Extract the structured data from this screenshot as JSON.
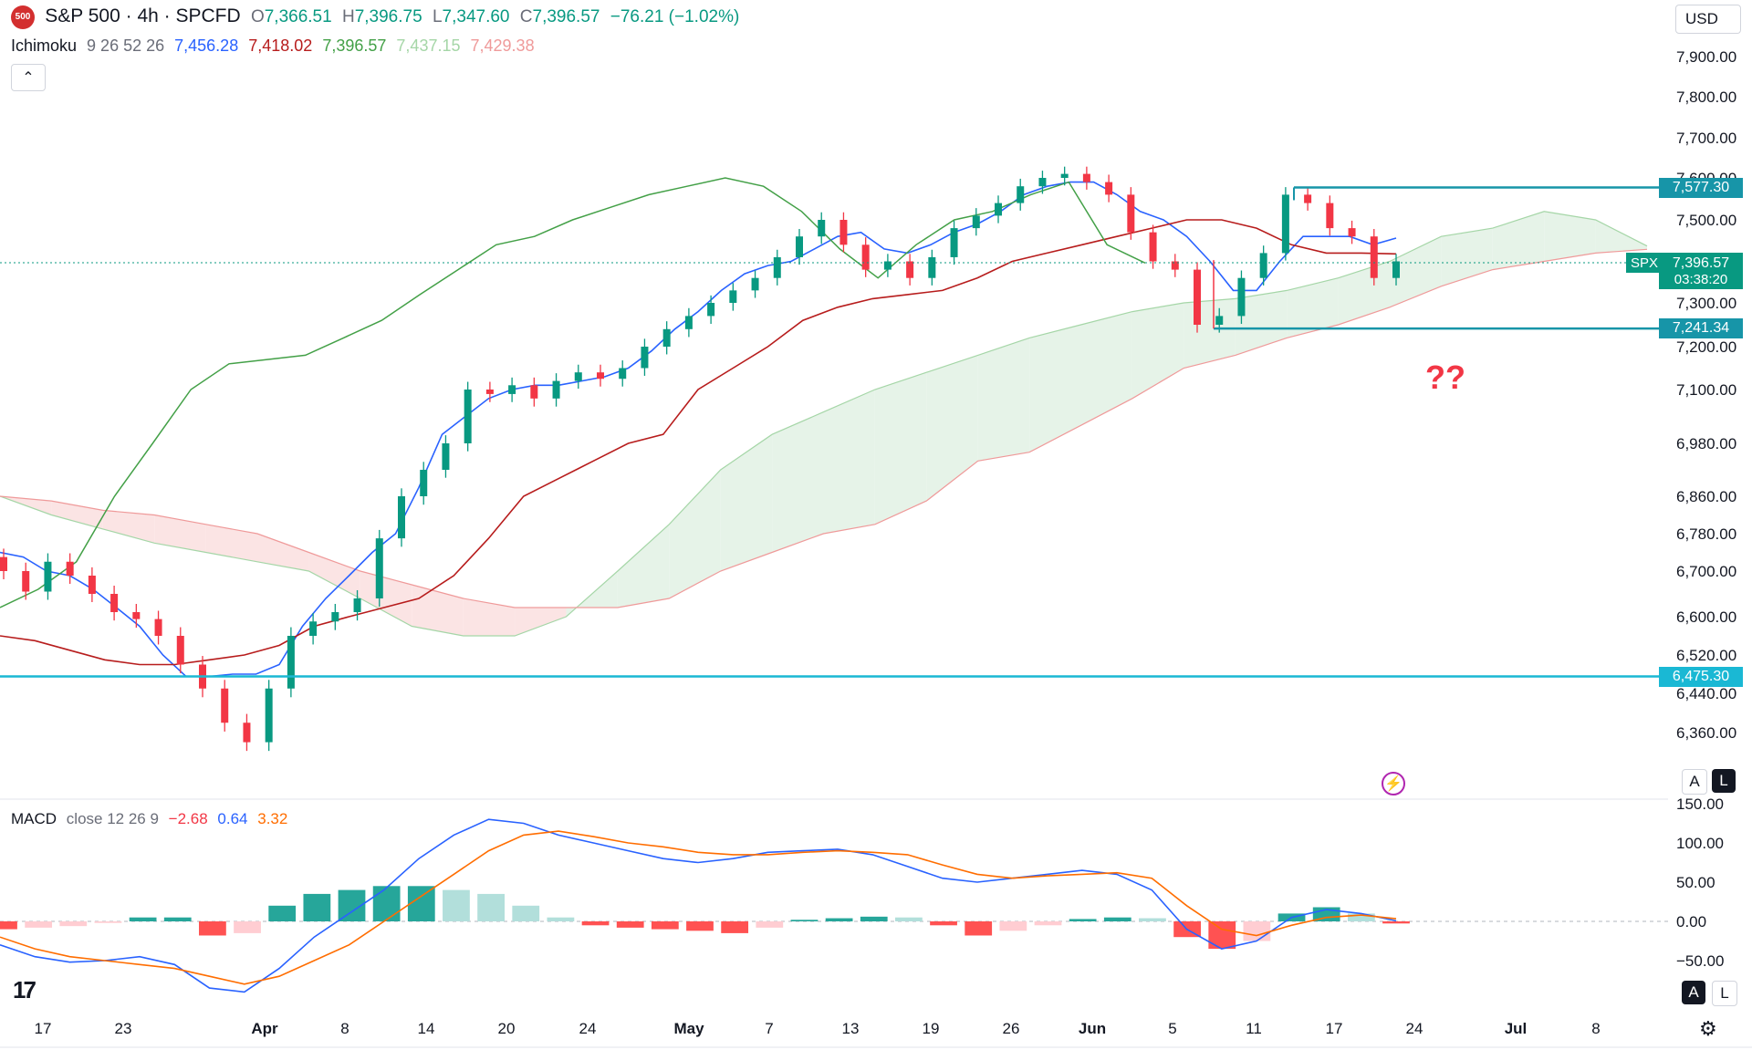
{
  "header": {
    "symbol_title": "S&P 500 · 4h · SPCFD",
    "logo_text": "500",
    "open_label": "O",
    "open": "7,366.51",
    "high_label": "H",
    "high": "7,396.75",
    "low_label": "L",
    "low": "7,347.60",
    "close_label": "C",
    "close": "7,396.57",
    "change": "−76.21 (−1.02%)"
  },
  "ichimoku_legend": {
    "name": "Ichimoku",
    "params": "9 26 52 26",
    "v1": "7,456.28",
    "v2": "7,418.02",
    "v3": "7,396.57",
    "v4": "7,437.15",
    "v5": "7,429.38"
  },
  "macd_legend": {
    "name": "MACD",
    "params": "close 12 26 9",
    "hist": "−2.68",
    "macd": "0.64",
    "signal": "3.32"
  },
  "currency": "USD",
  "tags": {
    "resistance": "7,577.30",
    "last_symbol": "SPX",
    "last_price": "7,396.57",
    "countdown": "03:38:20",
    "support_mid": "7,241.34",
    "support_low": "6,475.30"
  },
  "annotation": "??",
  "scale_buttons": {
    "auto": "A",
    "log": "L"
  },
  "colors": {
    "up": "#089981",
    "down": "#f23645",
    "tenkan": "#2962ff",
    "kijun": "#b71c1c",
    "chikou": "#43a047",
    "cloud_up": "#e6f3e8",
    "cloud_down": "#fbe4e4",
    "hline": "#00a5c8",
    "macd": "#2962ff",
    "signal": "#ff6d00"
  },
  "chart_data": [
    {
      "type": "candlestick",
      "title": "S&P 500 · 4h · SPCFD",
      "y_ticks": [
        "7,900.00",
        "7,800.00",
        "7,700.00",
        "7,600.00",
        "7,500.00",
        "7,300.00",
        "7,200.00",
        "7,100.00",
        "6,980.00",
        "6,860.00",
        "6,780.00",
        "6,700.00",
        "6,600.00",
        "6,520.00",
        "6,440.00",
        "6,360.00"
      ],
      "x_ticks": [
        "17",
        "23",
        "Apr",
        "8",
        "14",
        "20",
        "24",
        "May",
        "7",
        "13",
        "19",
        "26",
        "Jun",
        "5",
        "11",
        "17",
        "24",
        "Jul",
        "8"
      ],
      "horizontal_levels": [
        7577.3,
        7241.34,
        6475.3
      ],
      "last_price": 7396.57,
      "close_path": [
        6700,
        6655,
        6720,
        6690,
        6650,
        6610,
        6595,
        6560,
        6500,
        6450,
        6380,
        6340,
        6450,
        6560,
        6590,
        6610,
        6640,
        6770,
        6860,
        6920,
        6980,
        7100,
        7090,
        7110,
        7080,
        7120,
        7140,
        7125,
        7150,
        7200,
        7240,
        7270,
        7300,
        7330,
        7360,
        7410,
        7460,
        7500,
        7440,
        7380,
        7400,
        7360,
        7410,
        7480,
        7510,
        7540,
        7580,
        7600,
        7610,
        7590,
        7560,
        7470,
        7400,
        7380,
        7250,
        7270,
        7360,
        7420,
        7560,
        7540,
        7480,
        7460,
        7360,
        7400
      ],
      "tenkan_path": [
        6740,
        6730,
        6700,
        6690,
        6660,
        6620,
        6580,
        6520,
        6475,
        6475,
        6480,
        6480,
        6500,
        6580,
        6640,
        6690,
        6740,
        6780,
        6880,
        7000,
        7040,
        7080,
        7100,
        7110,
        7110,
        7120,
        7130,
        7150,
        7190,
        7240,
        7280,
        7330,
        7370,
        7390,
        7400,
        7430,
        7460,
        7470,
        7430,
        7420,
        7440,
        7470,
        7490,
        7520,
        7560,
        7580,
        7590,
        7590,
        7560,
        7520,
        7500,
        7460,
        7400,
        7330,
        7330,
        7400,
        7460,
        7460,
        7460,
        7440,
        7456
      ],
      "kijun_path": [
        6560,
        6550,
        6530,
        6510,
        6500,
        6500,
        6510,
        6520,
        6540,
        6580,
        6600,
        6620,
        6640,
        6690,
        6770,
        6860,
        6900,
        6940,
        6980,
        7000,
        7100,
        7150,
        7200,
        7260,
        7290,
        7310,
        7320,
        7330,
        7360,
        7400,
        7420,
        7440,
        7460,
        7480,
        7500,
        7500,
        7480,
        7440,
        7420,
        7420,
        7418
      ],
      "chikou_path": [
        6620,
        6660,
        6720,
        6860,
        6980,
        7100,
        7160,
        7170,
        7180,
        7220,
        7260,
        7320,
        7380,
        7440,
        7460,
        7500,
        7530,
        7560,
        7580,
        7600,
        7580,
        7520,
        7430,
        7360,
        7440,
        7500,
        7520,
        7560,
        7590,
        7440,
        7396
      ],
      "cloud_span_a": [
        6860,
        6820,
        6790,
        6760,
        6740,
        6720,
        6700,
        6640,
        6580,
        6560,
        6560,
        6600,
        6700,
        6800,
        6920,
        7000,
        7050,
        7100,
        7140,
        7180,
        7220,
        7250,
        7280,
        7300,
        7310,
        7330,
        7360,
        7400,
        7460,
        7480,
        7520,
        7500,
        7437
      ],
      "cloud_span_b": [
        6860,
        6850,
        6830,
        6820,
        6800,
        6780,
        6740,
        6700,
        6670,
        6640,
        6620,
        6620,
        6620,
        6640,
        6700,
        6740,
        6780,
        6800,
        6850,
        6940,
        6960,
        7020,
        7080,
        7150,
        7180,
        7220,
        7250,
        7290,
        7340,
        7380,
        7400,
        7420,
        7429
      ]
    },
    {
      "type": "macd",
      "title": "MACD close 12 26 9",
      "y_ticks": [
        "150.00",
        "100.00",
        "50.00",
        "0.00",
        "−50.00"
      ],
      "macd_path": [
        -30,
        -45,
        -52,
        -50,
        -45,
        -55,
        -85,
        -90,
        -60,
        -20,
        10,
        40,
        80,
        110,
        130,
        125,
        110,
        100,
        90,
        80,
        75,
        80,
        88,
        90,
        92,
        85,
        70,
        55,
        50,
        55,
        60,
        65,
        60,
        40,
        -10,
        -35,
        -25,
        5,
        15,
        10,
        0.64
      ],
      "signal_path": [
        -20,
        -35,
        -45,
        -50,
        -55,
        -60,
        -70,
        -80,
        -70,
        -50,
        -30,
        0,
        30,
        60,
        90,
        110,
        115,
        108,
        100,
        95,
        88,
        85,
        85,
        88,
        90,
        88,
        85,
        72,
        60,
        55,
        58,
        60,
        62,
        55,
        20,
        -10,
        -18,
        -5,
        5,
        8,
        3.32
      ],
      "histogram": [
        -10,
        -8,
        -6,
        -2,
        5,
        5,
        -18,
        -15,
        20,
        35,
        40,
        45,
        45,
        40,
        35,
        20,
        5,
        -5,
        -8,
        -10,
        -12,
        -15,
        -8,
        2,
        4,
        6,
        5,
        -5,
        -18,
        -12,
        -5,
        3,
        5,
        4,
        -20,
        -35,
        -25,
        10,
        18,
        10,
        -2.68
      ]
    }
  ]
}
